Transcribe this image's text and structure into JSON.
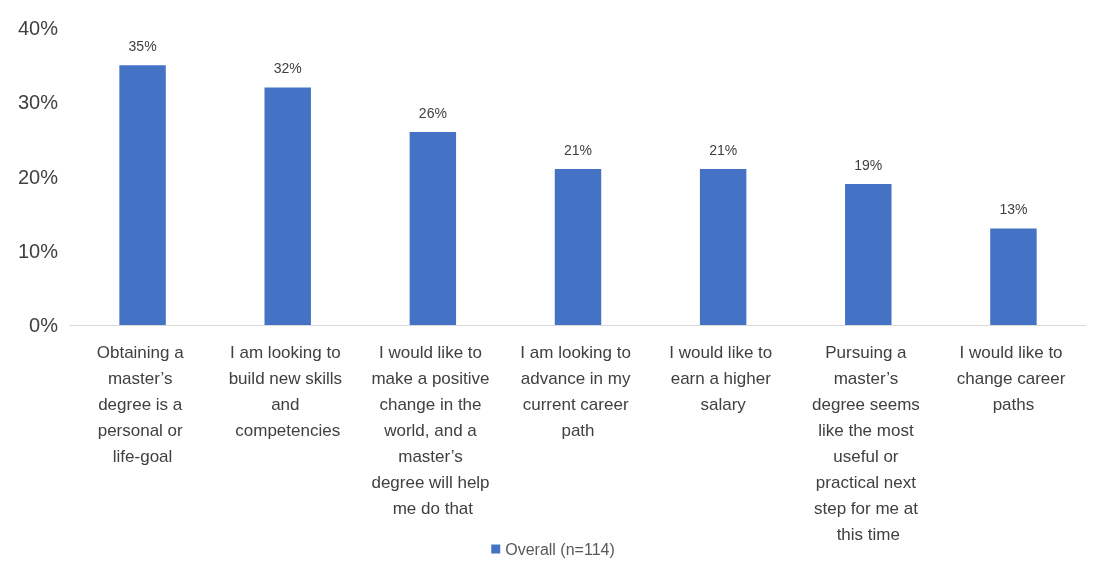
{
  "chart_data": {
    "type": "bar",
    "categories": [
      "Obtaining a master’s degree is a personal or life-goal",
      "I am looking to build new skills and competencies",
      "I would like to make a positive change in the world, and a master’s degree will help me do that",
      "I am looking to advance in my current career path",
      "I would like to earn a higher salary",
      "Pursuing a master’s degree seems like the most useful or practical next step for me at this time",
      "I would like to change career paths"
    ],
    "series": [
      {
        "name": "Overall (n=114)",
        "color": "#4472c4",
        "values": [
          35,
          32,
          26,
          21,
          21,
          19,
          13
        ],
        "value_labels": [
          "35%",
          "32%",
          "26%",
          "21%",
          "21%",
          "19%",
          "13%"
        ]
      }
    ],
    "ylim": [
      0,
      40
    ],
    "yticks": [
      {
        "value": 0,
        "label": "0%"
      },
      {
        "value": 10,
        "label": "10%"
      },
      {
        "value": 20,
        "label": "20%"
      },
      {
        "value": 30,
        "label": "30%"
      },
      {
        "value": 40,
        "label": "40%"
      }
    ],
    "grid": false,
    "legend": "bottom"
  }
}
